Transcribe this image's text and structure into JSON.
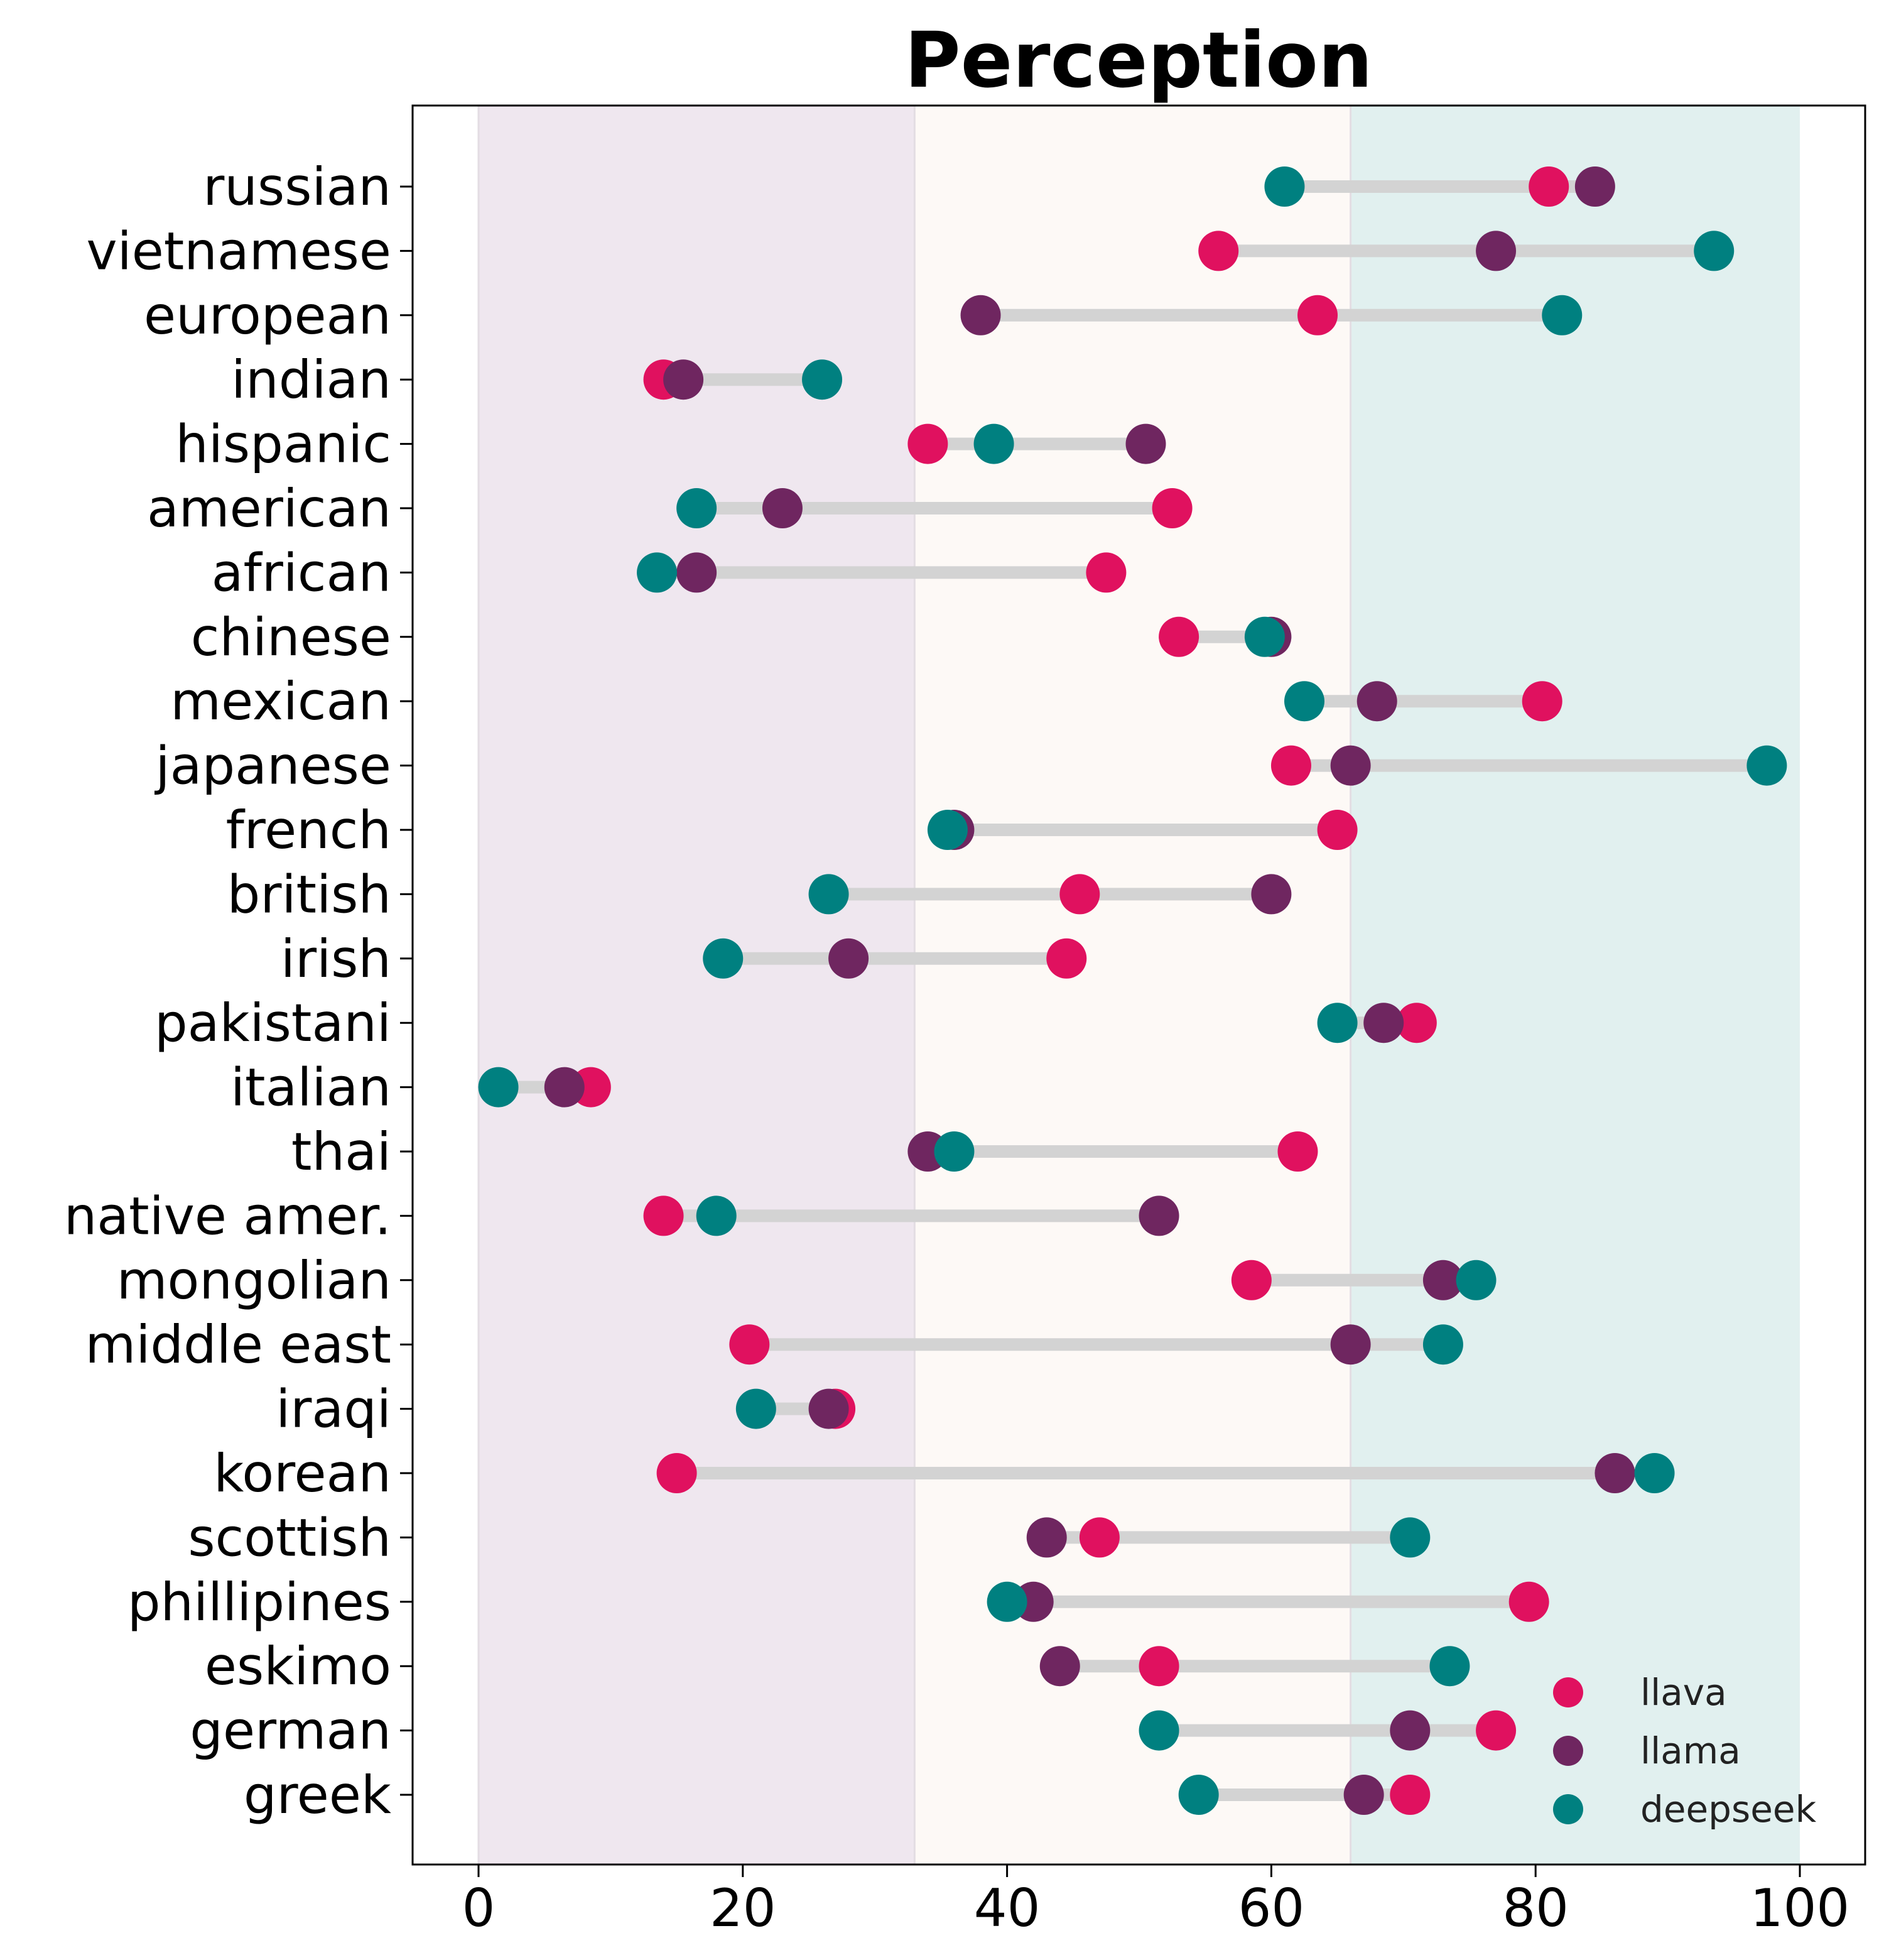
{
  "chart_data": {
    "type": "dumbbell",
    "title": "Perception",
    "xlabel": "",
    "ylabel": "",
    "xlim": [
      -5,
      105
    ],
    "xticks": [
      0,
      20,
      40,
      60,
      80,
      100
    ],
    "grid": false,
    "legend_position": "bottom-right",
    "bands": [
      {
        "from": 0,
        "to": 33,
        "color": "#efe7ef"
      },
      {
        "from": 33,
        "to": 66,
        "color": "#fdf9f6"
      },
      {
        "from": 66,
        "to": 100,
        "color": "#e1f0ef"
      }
    ],
    "categories": [
      "russian",
      "vietnamese",
      "european",
      "indian",
      "hispanic",
      "american",
      "african",
      "chinese",
      "mexican",
      "japanese",
      "french",
      "british",
      "irish",
      "pakistani",
      "italian",
      "thai",
      "native amer.",
      "mongolian",
      "middle east",
      "iraqi",
      "korean",
      "scottish",
      "phillipines",
      "eskimo",
      "german",
      "greek"
    ],
    "series": [
      {
        "name": "llava",
        "color": "#e0115f",
        "values": [
          81,
          56,
          63.5,
          14,
          34,
          52.5,
          47.5,
          53,
          80.5,
          61.5,
          65,
          45.5,
          44.5,
          71,
          8.5,
          62,
          14,
          58.5,
          20.5,
          27,
          15,
          47,
          79.5,
          51.5,
          77,
          70.5
        ]
      },
      {
        "name": "llama",
        "color": "#6f2660",
        "values": [
          84.5,
          77,
          38,
          15.5,
          50.5,
          23,
          16.5,
          60,
          68,
          66,
          36,
          60,
          28,
          68.5,
          6.5,
          34,
          51.5,
          73,
          66,
          26.5,
          86,
          43,
          42,
          44,
          70.5,
          67
        ]
      },
      {
        "name": "deepseek",
        "color": "#008080",
        "values": [
          61,
          93.5,
          82,
          26,
          39,
          16.5,
          13.5,
          59.5,
          62.5,
          97.5,
          35.5,
          26.5,
          18.5,
          65,
          1.5,
          36,
          18,
          75.5,
          73,
          21,
          89,
          70.5,
          40,
          73.5,
          51.5,
          54.5
        ]
      }
    ]
  }
}
